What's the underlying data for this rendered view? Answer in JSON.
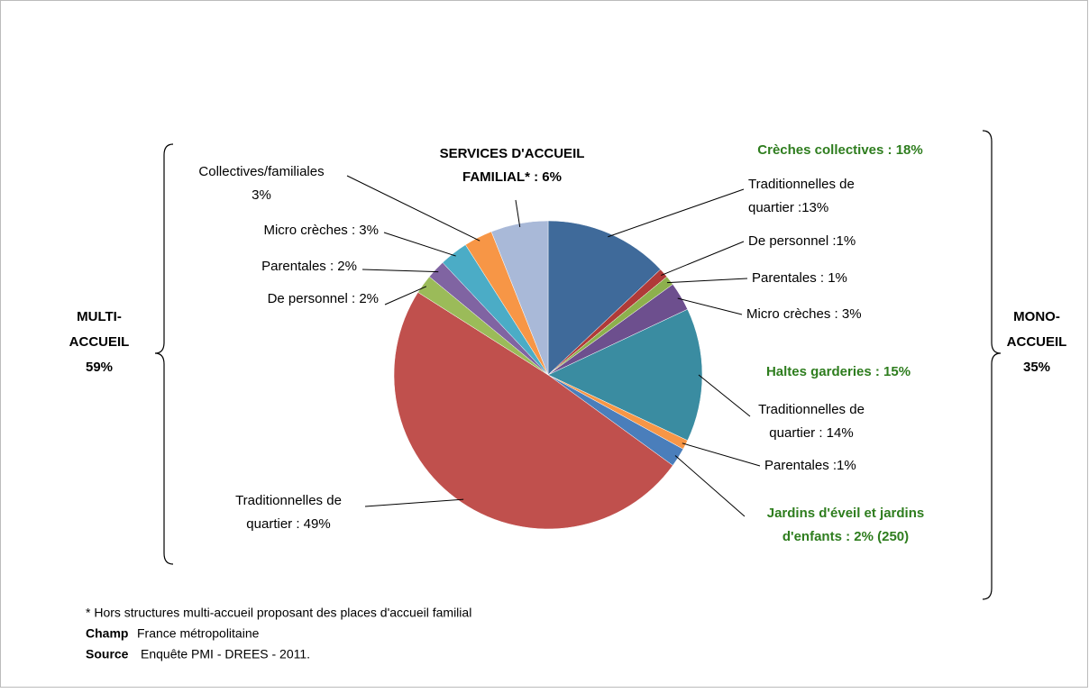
{
  "chart_data": {
    "type": "pie",
    "values": [
      13,
      1,
      1,
      3,
      14,
      1,
      2,
      49,
      2,
      2,
      3,
      3,
      6
    ],
    "colors": [
      "#3F6A9A",
      "#B03A38",
      "#8DB04D",
      "#6D4F8E",
      "#3A8CA1",
      "#F79646",
      "#4A7EBB",
      "#C0504D",
      "#9BBB59",
      "#8064A2",
      "#4BACC6",
      "#F79646",
      "#A9B9D8"
    ],
    "value_labels": [
      [
        "Traditionnelles de",
        "quartier :13%"
      ],
      [
        "De personnel :1%"
      ],
      [
        "Parentales  : 1%"
      ],
      [
        "Micro crèches : 3%"
      ],
      [
        "Traditionnelles de",
        "quartier : 14%"
      ],
      [
        "Parentales :1%"
      ],
      [
        "Jardins d'éveil et jardins",
        "d'enfants : 2% (250)"
      ],
      [
        "Traditionnelles de",
        "quartier : 49%"
      ],
      [
        "De personnel : 2%"
      ],
      [
        "Parentales : 2%"
      ],
      [
        "Micro crèches : 3%"
      ],
      [
        "Collectives/familiales",
        "3%"
      ],
      [
        "SERVICES D'ACCUEIL",
        "FAMILIAL* : 6%"
      ]
    ],
    "label_colors": [
      "#000000",
      "#000000",
      "#000000",
      "#000000",
      "#000000",
      "#000000",
      "#2E7D1E",
      "#000000",
      "#000000",
      "#000000",
      "#000000",
      "#000000",
      "#000000"
    ],
    "label_bold": [
      false,
      false,
      false,
      false,
      false,
      false,
      true,
      false,
      false,
      false,
      false,
      false,
      true
    ],
    "annotations": [
      "Crèches collectives : 18%",
      "Haltes garderies : 15%"
    ],
    "groups": [
      [
        "MULTI-",
        "ACCUEIL",
        "59%"
      ],
      [
        "MONO-",
        "ACCUEIL",
        "35%"
      ]
    ],
    "notes": [
      "* Hors structures multi-accueil proposant des places d'accueil familial"
    ],
    "sources": [
      [
        "Champ",
        "France métropolitaine"
      ],
      [
        "Source",
        "Enquête PMI - DREES - 2011."
      ]
    ]
  }
}
